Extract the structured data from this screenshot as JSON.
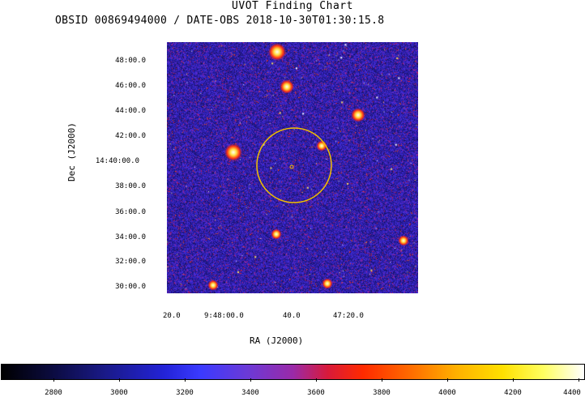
{
  "title": "UVOT Finding Chart",
  "subtitle": "OBSID 00869494000 / DATE-OBS 2018-10-30T01:30:15.8",
  "y_axis": {
    "label": "Dec (J2000)",
    "ticks": [
      "48:00.0",
      "46:00.0",
      "44:00.0",
      "42:00.0",
      "14:40:00.0",
      "38:00.0",
      "36:00.0",
      "34:00.0",
      "32:00.0",
      "30:00.0"
    ]
  },
  "x_axis": {
    "label": "RA (J2000)",
    "ticks": [
      "20.0",
      "9:48:00.0",
      "40.0",
      "47:20.0"
    ]
  },
  "colorbar": {
    "ticks": [
      "2800",
      "3000",
      "3200",
      "3400",
      "3600",
      "3800",
      "4000",
      "4200",
      "4400"
    ]
  },
  "colors": {
    "background_noise": "#2a20a0",
    "circle": "#f0c000"
  }
}
